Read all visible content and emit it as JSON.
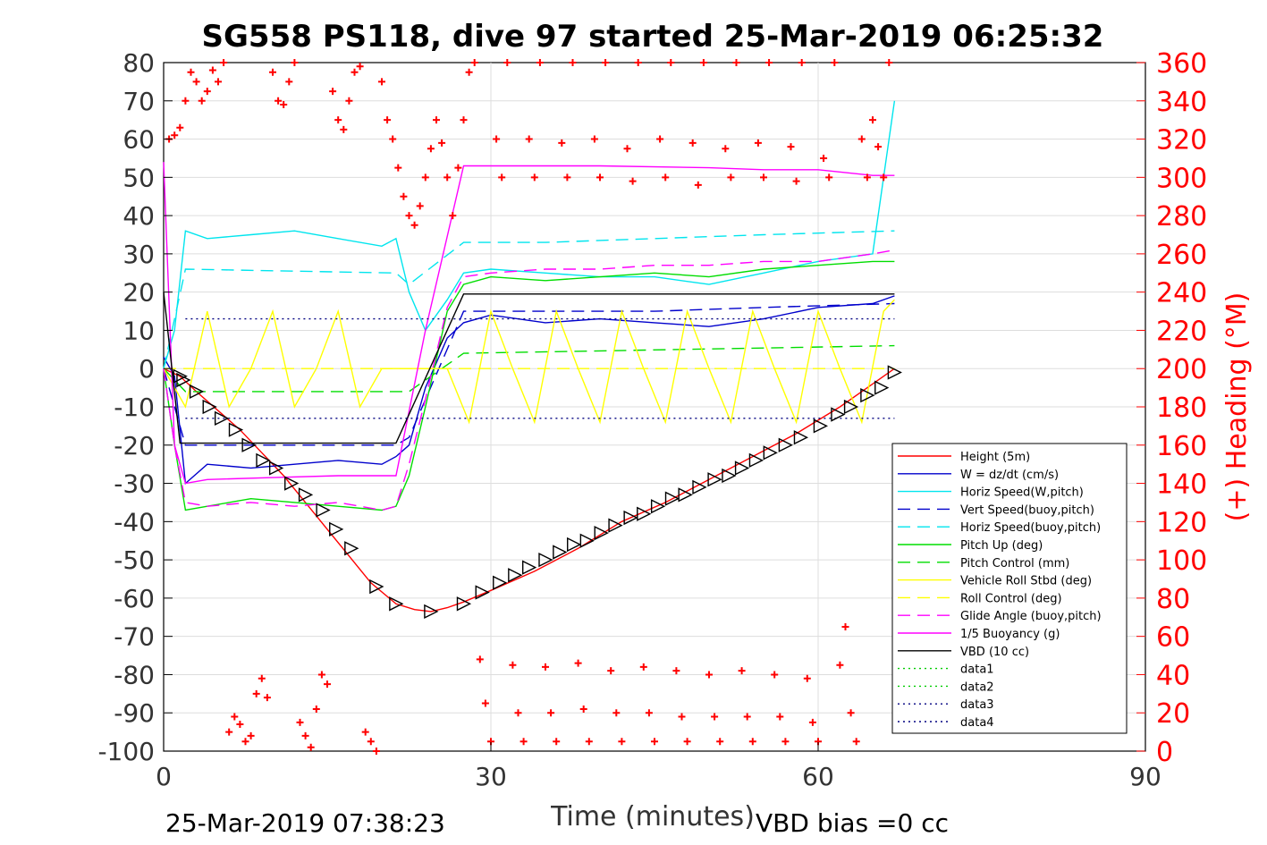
{
  "chart_data": {
    "type": "line",
    "title": "SG558 PS118, dive 97 started 25-Mar-2019 06:25:32",
    "xlabel": "Time (minutes)",
    "ylabel_right": "(+) Heading (°M)",
    "footer_left": "25-Mar-2019 07:38:23",
    "footer_right": "VBD bias =0 cc",
    "xlim": [
      0,
      90
    ],
    "ylim": [
      -100,
      80
    ],
    "ylim_right": [
      0,
      360
    ],
    "xticks": [
      "0",
      "30",
      "60",
      "90"
    ],
    "yticks": [
      "80",
      "70",
      "60",
      "50",
      "40",
      "30",
      "20",
      "10",
      "0",
      "-10",
      "-20",
      "-30",
      "-40",
      "-50",
      "-60",
      "-70",
      "-80",
      "-90",
      "-100"
    ],
    "yticks_right": [
      "360",
      "340",
      "320",
      "300",
      "280",
      "260",
      "240",
      "220",
      "200",
      "180",
      "160",
      "140",
      "120",
      "100",
      "80",
      "60",
      "40",
      "20",
      "0"
    ],
    "grid": true,
    "legend_position": "lower-right",
    "series": [
      {
        "name": "Height (5m)",
        "color": "#ff0000",
        "style": "solid",
        "x": [
          0.0,
          1.5,
          3,
          5,
          7,
          9,
          11,
          13,
          15,
          17,
          19,
          21.3,
          23,
          24.5,
          26,
          27.5,
          30,
          34,
          38,
          42,
          46,
          50,
          54,
          58,
          62,
          64,
          67
        ],
        "y": [
          0,
          -2,
          -6,
          -11,
          -16,
          -22,
          -28,
          -35,
          -42,
          -49,
          -56,
          -61.5,
          -63,
          -63.5,
          -62.5,
          -61,
          -58,
          -53,
          -47,
          -40,
          -35,
          -29,
          -23,
          -17,
          -10,
          -6,
          0
        ]
      },
      {
        "name": "W = dz/dt (cm/s)",
        "color": "#0000cc",
        "style": "solid",
        "x": [
          0,
          1,
          2,
          4,
          8,
          12,
          16,
          20,
          21.3,
          22.5,
          24,
          26,
          27.5,
          30,
          35,
          40,
          45,
          50,
          55,
          60,
          65,
          67
        ],
        "y": [
          3,
          -2,
          -30,
          -25,
          -26,
          -25,
          -24,
          -25,
          -23,
          -20,
          -5,
          8,
          12,
          14,
          12,
          13,
          12,
          11,
          13,
          16,
          17,
          19
        ]
      },
      {
        "name": "Horiz Speed(W,pitch)",
        "color": "#00e5ee",
        "style": "solid",
        "x": [
          0,
          1,
          2,
          4,
          8,
          12,
          16,
          20,
          21.3,
          22.5,
          24,
          26,
          27.5,
          30,
          35,
          40,
          45,
          50,
          55,
          60,
          65,
          67
        ],
        "y": [
          0,
          10,
          36,
          34,
          35,
          36,
          34,
          32,
          34,
          20,
          10,
          18,
          25,
          26,
          25,
          24,
          24,
          22,
          25,
          28,
          30,
          70
        ]
      },
      {
        "name": "Vert Speed(buoy,pitch)",
        "color": "#0000cc",
        "style": "dashed",
        "x": [
          0,
          2,
          21.3,
          22.5,
          27.5,
          35,
          45,
          55,
          67
        ],
        "y": [
          0,
          -20,
          -20,
          -18,
          15,
          15,
          15,
          16,
          17
        ]
      },
      {
        "name": "Horiz Speed(buoy,pitch)",
        "color": "#00e5ee",
        "style": "dashed",
        "x": [
          0,
          2,
          21.3,
          22.5,
          27.5,
          35,
          45,
          55,
          67
        ],
        "y": [
          0,
          26,
          25,
          22,
          33,
          33,
          34,
          35,
          36
        ]
      },
      {
        "name": "Pitch Up (deg)",
        "color": "#00dd00",
        "style": "solid",
        "x": [
          0,
          1,
          2,
          4,
          8,
          12,
          16,
          20,
          21.3,
          22.5,
          24,
          26,
          27.5,
          30,
          35,
          40,
          45,
          50,
          55,
          60,
          65,
          67
        ],
        "y": [
          0,
          -20,
          -37,
          -36,
          -34,
          -35,
          -36,
          -37,
          -36,
          -28,
          -10,
          15,
          22,
          24,
          23,
          24,
          25,
          24,
          26,
          27,
          28,
          28
        ]
      },
      {
        "name": "Pitch Control (mm)",
        "color": "#00dd00",
        "style": "dashed",
        "x": [
          0,
          2,
          21.3,
          22.5,
          27.5,
          67
        ],
        "y": [
          0,
          -6,
          -6,
          -6,
          4,
          6
        ]
      },
      {
        "name": "Vehicle Roll Stbd (deg)",
        "color": "#ffff00",
        "style": "solid",
        "x": [
          0,
          2,
          4,
          6,
          8,
          10,
          12,
          14,
          16,
          18,
          20,
          22,
          24,
          26,
          28,
          30,
          32,
          34,
          36,
          38,
          40,
          42,
          44,
          46,
          48,
          50,
          52,
          54,
          56,
          58,
          60,
          62,
          64,
          66,
          67
        ],
        "y": [
          0,
          -10,
          15,
          -10,
          0,
          15,
          -10,
          0,
          15,
          -10,
          0,
          0,
          0,
          0,
          -14,
          15,
          0,
          -14,
          15,
          0,
          -14,
          15,
          0,
          -14,
          15,
          0,
          -14,
          15,
          0,
          -14,
          15,
          0,
          -14,
          15,
          18
        ]
      },
      {
        "name": "Roll Control (deg)",
        "color": "#ffff00",
        "style": "dashed",
        "x": [
          0,
          67
        ],
        "y": [
          0,
          0
        ]
      },
      {
        "name": "Glide Angle (buoy,pitch)",
        "color": "#ff00ff",
        "style": "dashed",
        "x": [
          0,
          1,
          2,
          4,
          8,
          12,
          16,
          20,
          21.3,
          22.5,
          24,
          26,
          27.5,
          30,
          35,
          40,
          45,
          50,
          55,
          60,
          65,
          67
        ],
        "y": [
          0,
          -20,
          -35,
          -36,
          -35,
          -36,
          -35,
          -37,
          -36,
          -25,
          -8,
          16,
          24,
          25,
          26,
          26,
          27,
          27,
          28,
          28,
          30,
          31
        ]
      },
      {
        "name": "1/5 Buoyancy (g)",
        "color": "#ff00ff",
        "style": "solid",
        "x": [
          0,
          1,
          2,
          4,
          10,
          16,
          21.3,
          24,
          27.5,
          30,
          40,
          50,
          55,
          60,
          65,
          67
        ],
        "y": [
          54,
          -20,
          -30,
          -29,
          -28.5,
          -28,
          -28,
          10,
          53,
          53,
          53,
          52.5,
          52,
          52,
          50.5,
          50.5
        ]
      },
      {
        "name": "VBD (10 cc)",
        "color": "#000000",
        "style": "solid",
        "x": [
          0,
          1.5,
          21.3,
          27.5,
          67
        ],
        "y": [
          20,
          -19.5,
          -19.5,
          19.5,
          19.5
        ]
      },
      {
        "name": "data1",
        "color": "#00cc00",
        "style": "dotted",
        "x": [],
        "y": []
      },
      {
        "name": "data2",
        "color": "#00cc00",
        "style": "dotted",
        "x": [],
        "y": []
      },
      {
        "name": "data3",
        "color": "#000080",
        "style": "dotted",
        "x": [
          2,
          67
        ],
        "y": [
          13,
          13
        ]
      },
      {
        "name": "data4",
        "color": "#000080",
        "style": "dotted",
        "x": [
          2,
          67
        ],
        "y": [
          -13,
          -13
        ]
      }
    ],
    "height_markers": {
      "series": "Height (5m)",
      "marker": "triangle",
      "color": "#000000",
      "x": [
        1.5,
        1.8,
        3,
        4.2,
        5.3,
        6.6,
        7.8,
        9.1,
        10.3,
        11.7,
        13,
        14.6,
        15.8,
        17.2,
        19.5,
        21.3,
        24.5,
        27.5,
        29.2,
        30.8,
        32.2,
        33.5,
        35,
        36.3,
        37.6,
        38.8,
        40.1,
        41.4,
        42.8,
        44,
        45.3,
        46.6,
        47.8,
        49.1,
        50.5,
        51.8,
        53,
        54.3,
        55.6,
        57,
        58.4,
        60.2,
        61.8,
        63,
        64.5,
        65.8,
        67
      ],
      "y": [
        -2,
        -3,
        -6,
        -10,
        -13,
        -16,
        -20,
        -24,
        -26,
        -30,
        -33,
        -37,
        -42,
        -47,
        -57,
        -61.5,
        -63.5,
        -61.5,
        -58.5,
        -56,
        -54,
        -52,
        -50,
        -48,
        -46,
        -45,
        -43,
        -41,
        -39,
        -38,
        -36,
        -34,
        -33,
        -31,
        -29,
        -28,
        -26,
        -24,
        -22,
        -20,
        -18,
        -15,
        -12,
        -10,
        -7,
        -5,
        -1
      ]
    },
    "heading_series": {
      "name": "Heading (+)",
      "color": "#ff0000",
      "marker": "plus",
      "axis": "right",
      "x": [
        0.5,
        1,
        1.5,
        2,
        2.5,
        3,
        3.5,
        4,
        4.5,
        5,
        5.5,
        6,
        6.5,
        7,
        7.5,
        8,
        8.5,
        9,
        9.5,
        10,
        10.5,
        11,
        11.5,
        12,
        12.5,
        13,
        13.5,
        14,
        14.5,
        15,
        15.5,
        16,
        16.5,
        17,
        17.5,
        18,
        18.5,
        19,
        19.5,
        20,
        20.5,
        21,
        21.5,
        22,
        22.5,
        23,
        23.5,
        24,
        24.5,
        25,
        25.5,
        26,
        26.5,
        27,
        27.5,
        28,
        28.5,
        29,
        29.5,
        30,
        30.5,
        31,
        31.5,
        32,
        32.5,
        33,
        33.5,
        34,
        34.5,
        35,
        35.5,
        36,
        36.5,
        37,
        37.5,
        38,
        38.5,
        39,
        39.5,
        40,
        40.5,
        41,
        41.5,
        42,
        42.5,
        43,
        43.5,
        44,
        44.5,
        45,
        45.5,
        46,
        46.5,
        47,
        47.5,
        48,
        48.5,
        49,
        49.5,
        50,
        50.5,
        51,
        51.5,
        52,
        52.5,
        53,
        53.5,
        54,
        54.5,
        55,
        55.5,
        56,
        56.5,
        57,
        57.5,
        58,
        58.5,
        59,
        59.5,
        60,
        60.5,
        61,
        61.5,
        62,
        62.5,
        63,
        63.5,
        64,
        64.5,
        65,
        65.5,
        66,
        66.5
      ],
      "y": [
        320,
        322,
        326,
        340,
        355,
        350,
        340,
        345,
        356,
        350,
        360,
        10,
        18,
        14,
        5,
        8,
        30,
        38,
        28,
        355,
        340,
        338,
        350,
        360,
        15,
        8,
        2,
        22,
        40,
        35,
        345,
        330,
        325,
        340,
        355,
        358,
        10,
        5,
        0,
        350,
        330,
        320,
        305,
        290,
        280,
        275,
        285,
        300,
        315,
        330,
        318,
        300,
        280,
        305,
        330,
        355,
        360,
        48,
        25,
        5,
        320,
        300,
        360,
        45,
        20,
        5,
        320,
        300,
        360,
        44,
        20,
        5,
        318,
        300,
        360,
        46,
        22,
        5,
        320,
        300,
        360,
        42,
        20,
        5,
        315,
        298,
        360,
        44,
        20,
        5,
        320,
        300,
        360,
        42,
        18,
        5,
        318,
        296,
        360,
        40,
        18,
        5,
        315,
        300,
        360,
        42,
        18,
        5,
        318,
        300,
        360,
        40,
        18,
        5,
        316,
        298,
        360,
        38,
        15,
        5,
        310,
        300,
        360,
        45,
        65,
        20,
        5,
        320,
        300,
        330,
        316,
        300,
        360
      ]
    }
  }
}
